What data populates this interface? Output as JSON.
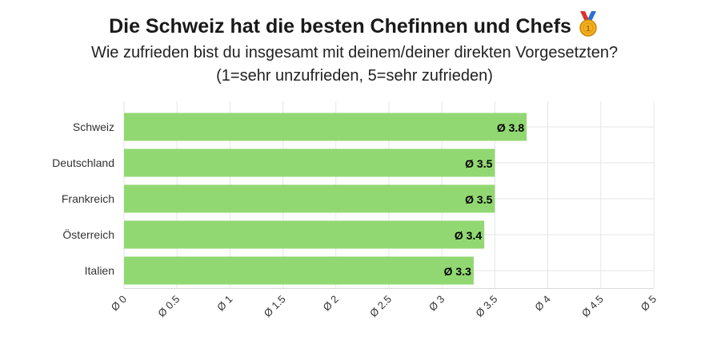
{
  "chart_data": {
    "type": "bar",
    "orientation": "horizontal",
    "title": "Die Schweiz hat die besten Chefinnen und Chefs",
    "title_icon": "medal-icon",
    "subtitle_line1": "Wie zufrieden bist du insgesamt mit deinem/deiner direkten Vorgesetzten?",
    "subtitle_line2": "(1=sehr unzufrieden, 5=sehr zufrieden)",
    "categories": [
      "Schweiz",
      "Deutschland",
      "Frankreich",
      "Österreich",
      "Italien"
    ],
    "values": [
      3.8,
      3.5,
      3.5,
      3.4,
      3.3
    ],
    "data_labels": [
      "Ø 3.8",
      "Ø 3.5",
      "Ø 3.5",
      "Ø 3.4",
      "Ø 3.3"
    ],
    "x_ticks": [
      0,
      0.5,
      1,
      1.5,
      2,
      2.5,
      3,
      3.5,
      4,
      4.5,
      5
    ],
    "x_tick_labels": [
      "Ø 0",
      "Ø 0.5",
      "Ø 1",
      "Ø 1.5",
      "Ø 2",
      "Ø 2.5",
      "Ø 3",
      "Ø 3.5",
      "Ø 4",
      "Ø 4.5",
      "Ø 5"
    ],
    "xlim": [
      0,
      5
    ],
    "xlabel": "",
    "ylabel": "",
    "grid": true,
    "legend": "none",
    "bar_color": "#92d872",
    "grid_color": "#e6e6e6"
  }
}
